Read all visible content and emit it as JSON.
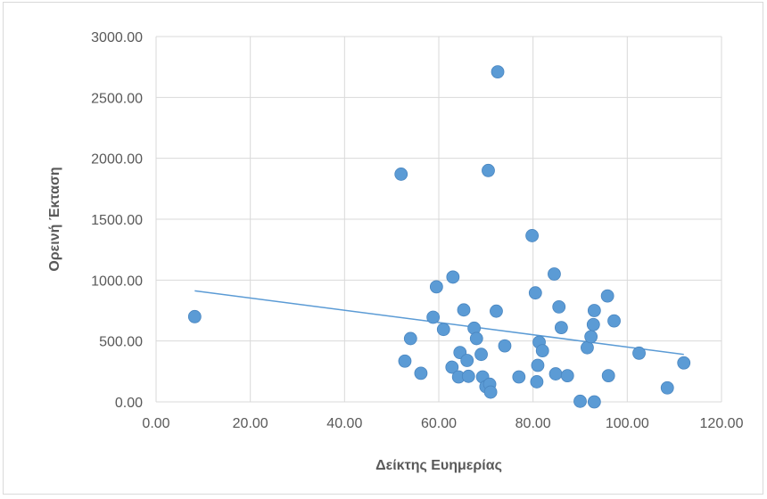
{
  "chart_data": {
    "type": "scatter",
    "title": "",
    "xlabel": "Δείκτης Ευημερίας",
    "ylabel": "Ορεινή Έκταση",
    "xlim": [
      0,
      120
    ],
    "ylim": [
      0,
      3000
    ],
    "x_ticks": [
      0,
      20,
      40,
      60,
      80,
      100,
      120
    ],
    "y_ticks": [
      0,
      500,
      1000,
      1500,
      2000,
      2500,
      3000
    ],
    "x_tick_labels": [
      "0.00",
      "20.00",
      "40.00",
      "60.00",
      "80.00",
      "100.00",
      "120.00"
    ],
    "y_tick_labels": [
      "0.00",
      "500.00",
      "1000.00",
      "1500.00",
      "2000.00",
      "2500.00",
      "3000.00"
    ],
    "grid": true,
    "legend": "none",
    "marker_color": "#5b9bd5",
    "trendline": {
      "type": "linear",
      "x": [
        8.2,
        112.0
      ],
      "y": [
        912,
        390
      ],
      "color": "#5b9bd5"
    },
    "series": [
      {
        "points": [
          [
            8.2,
            700
          ],
          [
            52.0,
            1870
          ],
          [
            52.8,
            335
          ],
          [
            54.0,
            520
          ],
          [
            56.2,
            235
          ],
          [
            58.8,
            695
          ],
          [
            59.5,
            945
          ],
          [
            61.0,
            595
          ],
          [
            62.8,
            285
          ],
          [
            63.0,
            1025
          ],
          [
            64.2,
            205
          ],
          [
            64.5,
            405
          ],
          [
            65.3,
            755
          ],
          [
            66.0,
            340
          ],
          [
            66.3,
            210
          ],
          [
            67.5,
            605
          ],
          [
            68.0,
            520
          ],
          [
            69.0,
            390
          ],
          [
            69.3,
            205
          ],
          [
            70.0,
            125
          ],
          [
            70.5,
            1900
          ],
          [
            70.8,
            145
          ],
          [
            71.0,
            80
          ],
          [
            72.2,
            745
          ],
          [
            72.5,
            2710
          ],
          [
            74.0,
            460
          ],
          [
            77.0,
            205
          ],
          [
            79.8,
            1365
          ],
          [
            80.5,
            895
          ],
          [
            80.8,
            165
          ],
          [
            81.0,
            300
          ],
          [
            81.3,
            490
          ],
          [
            82.0,
            420
          ],
          [
            84.5,
            1050
          ],
          [
            84.8,
            230
          ],
          [
            85.5,
            780
          ],
          [
            86.0,
            610
          ],
          [
            87.3,
            215
          ],
          [
            90.0,
            5
          ],
          [
            91.5,
            445
          ],
          [
            92.3,
            535
          ],
          [
            92.8,
            635
          ],
          [
            93.0,
            750
          ],
          [
            93.0,
            0
          ],
          [
            95.8,
            870
          ],
          [
            96.0,
            215
          ],
          [
            97.2,
            665
          ],
          [
            102.5,
            400
          ],
          [
            108.5,
            115
          ],
          [
            112.0,
            320
          ]
        ]
      }
    ]
  }
}
